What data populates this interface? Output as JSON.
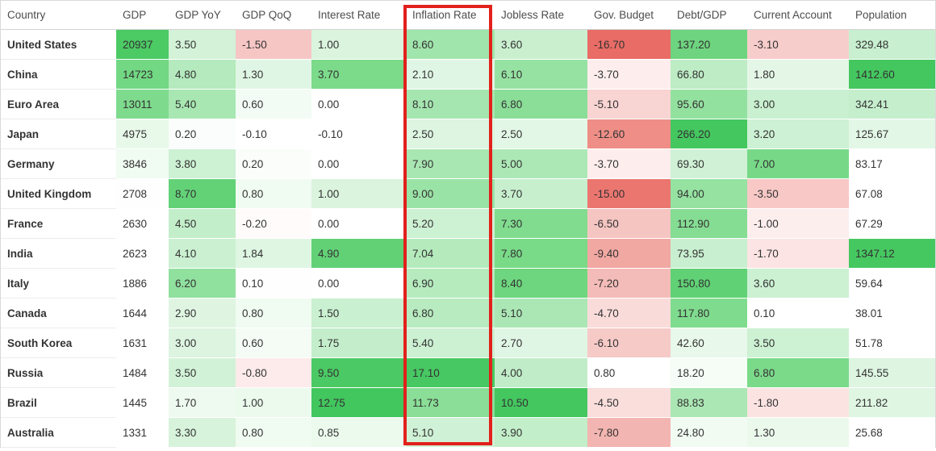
{
  "annotation": {
    "highlighted_column": "Inflation Rate",
    "box_color": "#e2201c"
  },
  "table": {
    "columns": [
      {
        "key": "country",
        "label": "Country"
      },
      {
        "key": "gdp",
        "label": "GDP"
      },
      {
        "key": "gdp-yoy",
        "label": "GDP YoY"
      },
      {
        "key": "gdp-qoq",
        "label": "GDP QoQ"
      },
      {
        "key": "interest-rate",
        "label": "Interest Rate"
      },
      {
        "key": "inflation-rate",
        "label": "Inflation Rate"
      },
      {
        "key": "jobless-rate",
        "label": "Jobless Rate"
      },
      {
        "key": "gov-budget",
        "label": "Gov. Budget"
      },
      {
        "key": "debt-gdp",
        "label": "Debt/GDP"
      },
      {
        "key": "current-account",
        "label": "Current Account"
      },
      {
        "key": "population",
        "label": "Population"
      }
    ],
    "rows": [
      {
        "country": "United States",
        "cells": [
          {
            "v": "20937",
            "bg": "#4cca64"
          },
          {
            "v": "3.50",
            "bg": "#d3f2d8"
          },
          {
            "v": "-1.50",
            "bg": "#f6c6c5"
          },
          {
            "v": "1.00",
            "bg": "#daf4de"
          },
          {
            "v": "8.60",
            "bg": "#a0e5ab"
          },
          {
            "v": "3.60",
            "bg": "#c9efcf"
          },
          {
            "v": "-16.70",
            "bg": "#e96c66"
          },
          {
            "v": "137.20",
            "bg": "#6ed47f"
          },
          {
            "v": "-3.10",
            "bg": "#f7cdcb"
          },
          {
            "v": "329.48",
            "bg": "#c8efcf"
          }
        ]
      },
      {
        "country": "China",
        "cells": [
          {
            "v": "14723",
            "bg": "#72d883"
          },
          {
            "v": "4.80",
            "bg": "#b4eabd"
          },
          {
            "v": "1.30",
            "bg": "#e0f6e4"
          },
          {
            "v": "3.70",
            "bg": "#7cda8b"
          },
          {
            "v": "2.10",
            "bg": "#e0f6e4"
          },
          {
            "v": "6.10",
            "bg": "#96e2a2"
          },
          {
            "v": "-3.70",
            "bg": "#fdeeed"
          },
          {
            "v": "66.80",
            "bg": "#bdecc5"
          },
          {
            "v": "1.80",
            "bg": "#e4f7e7"
          },
          {
            "v": "1412.60",
            "bg": "#44c75f"
          }
        ]
      },
      {
        "country": "Euro Area",
        "cells": [
          {
            "v": "13011",
            "bg": "#7edb8d"
          },
          {
            "v": "5.40",
            "bg": "#a8e7b2"
          },
          {
            "v": "0.60",
            "bg": "#f3fcf4"
          },
          {
            "v": "0.00",
            "bg": "#ffffff"
          },
          {
            "v": "8.10",
            "bg": "#a5e6b0"
          },
          {
            "v": "6.80",
            "bg": "#8ade97"
          },
          {
            "v": "-5.10",
            "bg": "#f8d4d2"
          },
          {
            "v": "95.60",
            "bg": "#93e19f"
          },
          {
            "v": "3.00",
            "bg": "#c9f0d0"
          },
          {
            "v": "342.41",
            "bg": "#c5eecd"
          }
        ]
      },
      {
        "country": "Japan",
        "cells": [
          {
            "v": "4975",
            "bg": "#e8f9ea"
          },
          {
            "v": "0.20",
            "bg": "#fafdfb"
          },
          {
            "v": "-0.10",
            "bg": "#ffffff"
          },
          {
            "v": "-0.10",
            "bg": "#ffffff"
          },
          {
            "v": "2.50",
            "bg": "#ddf5e1"
          },
          {
            "v": "2.50",
            "bg": "#e2f7e5"
          },
          {
            "v": "-12.60",
            "bg": "#ee8e86"
          },
          {
            "v": "266.20",
            "bg": "#44c75f"
          },
          {
            "v": "3.20",
            "bg": "#cdf1d4"
          },
          {
            "v": "125.67",
            "bg": "#e3f7e6"
          }
        ]
      },
      {
        "country": "Germany",
        "cells": [
          {
            "v": "3846",
            "bg": "#f0fbf1"
          },
          {
            "v": "3.80",
            "bg": "#cdf1d3"
          },
          {
            "v": "0.20",
            "bg": "#fafdfa"
          },
          {
            "v": "0.00",
            "bg": "#ffffff"
          },
          {
            "v": "7.90",
            "bg": "#a8e7b2"
          },
          {
            "v": "5.00",
            "bg": "#ace8b6"
          },
          {
            "v": "-3.70",
            "bg": "#fdeeed"
          },
          {
            "v": "69.30",
            "bg": "#d0f1d6"
          },
          {
            "v": "7.00",
            "bg": "#77d987"
          },
          {
            "v": "83.17",
            "bg": "#ffffff"
          }
        ]
      },
      {
        "country": "United Kingdom",
        "cells": [
          {
            "v": "2708",
            "bg": "#fdfefd"
          },
          {
            "v": "8.70",
            "bg": "#63d277"
          },
          {
            "v": "0.80",
            "bg": "#f0fbf1"
          },
          {
            "v": "1.00",
            "bg": "#daf4de"
          },
          {
            "v": "9.00",
            "bg": "#9ae3a6"
          },
          {
            "v": "3.70",
            "bg": "#c7efce"
          },
          {
            "v": "-15.00",
            "bg": "#eb7670"
          },
          {
            "v": "94.00",
            "bg": "#95e2a1"
          },
          {
            "v": "-3.50",
            "bg": "#f7c8c6"
          },
          {
            "v": "67.08",
            "bg": "#ffffff"
          }
        ]
      },
      {
        "country": "France",
        "cells": [
          {
            "v": "2630",
            "bg": "#ffffff"
          },
          {
            "v": "4.50",
            "bg": "#c3eeca"
          },
          {
            "v": "-0.20",
            "bg": "#fffbfb"
          },
          {
            "v": "0.00",
            "bg": "#ffffff"
          },
          {
            "v": "5.20",
            "bg": "#cdf1d3"
          },
          {
            "v": "7.30",
            "bg": "#81dc90"
          },
          {
            "v": "-6.50",
            "bg": "#f5c5c2"
          },
          {
            "v": "112.90",
            "bg": "#85dd93"
          },
          {
            "v": "-1.00",
            "bg": "#fdeeee"
          },
          {
            "v": "67.29",
            "bg": "#ffffff"
          }
        ]
      },
      {
        "country": "India",
        "cells": [
          {
            "v": "2623",
            "bg": "#ffffff"
          },
          {
            "v": "4.10",
            "bg": "#caf0d1"
          },
          {
            "v": "1.84",
            "bg": "#dff6e3"
          },
          {
            "v": "4.90",
            "bg": "#62d176"
          },
          {
            "v": "7.04",
            "bg": "#b4eabc"
          },
          {
            "v": "7.80",
            "bg": "#79da88"
          },
          {
            "v": "-9.40",
            "bg": "#f1a7a2"
          },
          {
            "v": "73.95",
            "bg": "#c8efcf"
          },
          {
            "v": "-1.70",
            "bg": "#fbe4e3"
          },
          {
            "v": "1347.12",
            "bg": "#46c861"
          }
        ]
      },
      {
        "country": "Italy",
        "cells": [
          {
            "v": "1886",
            "bg": "#ffffff"
          },
          {
            "v": "6.20",
            "bg": "#90e09e"
          },
          {
            "v": "0.10",
            "bg": "#fdfefd"
          },
          {
            "v": "0.00",
            "bg": "#ffffff"
          },
          {
            "v": "6.90",
            "bg": "#b6ebbe"
          },
          {
            "v": "8.40",
            "bg": "#6dd67e"
          },
          {
            "v": "-7.20",
            "bg": "#f4bcb8"
          },
          {
            "v": "150.80",
            "bg": "#60d175"
          },
          {
            "v": "3.60",
            "bg": "#cbf0d2"
          },
          {
            "v": "59.64",
            "bg": "#ffffff"
          }
        ]
      },
      {
        "country": "Canada",
        "cells": [
          {
            "v": "1644",
            "bg": "#ffffff"
          },
          {
            "v": "2.90",
            "bg": "#dff5e2"
          },
          {
            "v": "0.80",
            "bg": "#f0fbf1"
          },
          {
            "v": "1.50",
            "bg": "#c9f0d0"
          },
          {
            "v": "6.80",
            "bg": "#b8ebc0"
          },
          {
            "v": "5.10",
            "bg": "#abe7b5"
          },
          {
            "v": "-4.70",
            "bg": "#f9dcda"
          },
          {
            "v": "117.80",
            "bg": "#7fdb8e"
          },
          {
            "v": "0.10",
            "bg": "#ffffff"
          },
          {
            "v": "38.01",
            "bg": "#ffffff"
          }
        ]
      },
      {
        "country": "South Korea",
        "cells": [
          {
            "v": "1631",
            "bg": "#ffffff"
          },
          {
            "v": "3.00",
            "bg": "#dcf4e0"
          },
          {
            "v": "0.60",
            "bg": "#f4fcf5"
          },
          {
            "v": "1.75",
            "bg": "#c4eecb"
          },
          {
            "v": "5.40",
            "bg": "#cbf0d2"
          },
          {
            "v": "2.70",
            "bg": "#e0f6e4"
          },
          {
            "v": "-6.10",
            "bg": "#f6cac7"
          },
          {
            "v": "42.60",
            "bg": "#e8f8ea"
          },
          {
            "v": "3.50",
            "bg": "#cdf1d3"
          },
          {
            "v": "51.78",
            "bg": "#ffffff"
          }
        ]
      },
      {
        "country": "Russia",
        "cells": [
          {
            "v": "1484",
            "bg": "#ffffff"
          },
          {
            "v": "3.50",
            "bg": "#d2f2d7"
          },
          {
            "v": "-0.80",
            "bg": "#fcebea"
          },
          {
            "v": "9.50",
            "bg": "#4bc964"
          },
          {
            "v": "17.10",
            "bg": "#47c862"
          },
          {
            "v": "4.00",
            "bg": "#c0edc8"
          },
          {
            "v": "0.80",
            "bg": "#ffffff"
          },
          {
            "v": "18.20",
            "bg": "#f5fdf6"
          },
          {
            "v": "6.80",
            "bg": "#7bda8a"
          },
          {
            "v": "145.55",
            "bg": "#ddf5e1"
          }
        ]
      },
      {
        "country": "Brazil",
        "cells": [
          {
            "v": "1445",
            "bg": "#ffffff"
          },
          {
            "v": "1.70",
            "bg": "#eefaef"
          },
          {
            "v": "1.00",
            "bg": "#ecfaee"
          },
          {
            "v": "12.75",
            "bg": "#42c65e"
          },
          {
            "v": "11.73",
            "bg": "#8ade97"
          },
          {
            "v": "10.50",
            "bg": "#44c75f"
          },
          {
            "v": "-4.50",
            "bg": "#f9dedc"
          },
          {
            "v": "88.83",
            "bg": "#abe7b4"
          },
          {
            "v": "-1.80",
            "bg": "#fbe3e2"
          },
          {
            "v": "211.82",
            "bg": "#dff6e2"
          }
        ]
      },
      {
        "country": "Australia",
        "cells": [
          {
            "v": "1331",
            "bg": "#ffffff"
          },
          {
            "v": "3.30",
            "bg": "#d7f3db"
          },
          {
            "v": "0.80",
            "bg": "#f0fbf1"
          },
          {
            "v": "0.85",
            "bg": "#ecfaee"
          },
          {
            "v": "5.10",
            "bg": "#cff1d5"
          },
          {
            "v": "3.90",
            "bg": "#c2eec9"
          },
          {
            "v": "-7.80",
            "bg": "#f3b5b1"
          },
          {
            "v": "24.80",
            "bg": "#f1fbf2"
          },
          {
            "v": "1.30",
            "bg": "#ebf9ed"
          },
          {
            "v": "25.68",
            "bg": "#ffffff"
          }
        ]
      }
    ]
  }
}
